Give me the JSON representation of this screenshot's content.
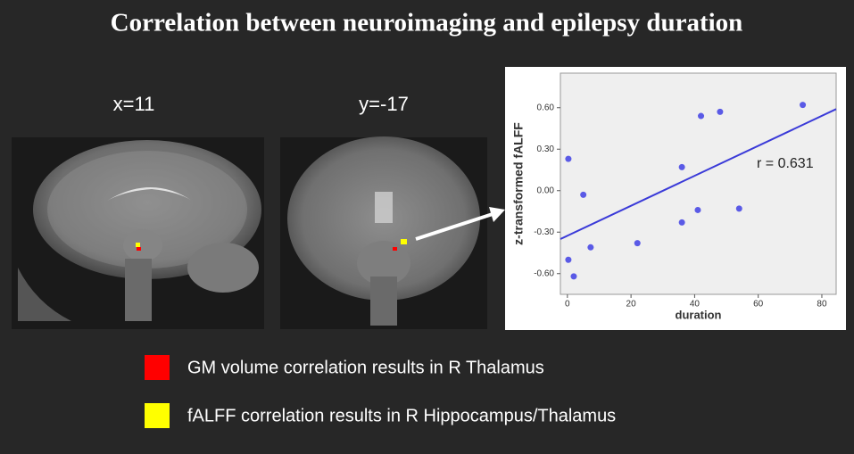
{
  "title": "Correlation between neuroimaging and epilepsy duration",
  "panel_labels": [
    "x=11",
    "y=-17"
  ],
  "legend": [
    {
      "label": "GM volume correlation results in R Thalamus",
      "color": "#ff0000"
    },
    {
      "label": "fALFF correlation results in R Hippocampus/Thalamus",
      "color": "#ffff00"
    }
  ],
  "chart_data": {
    "type": "scatter",
    "x_label": "duration",
    "y_label": "z-transformed fALFF",
    "annotation": "r = 0.631",
    "color": "#5a5ae6",
    "line_color": "#3a3ad8",
    "x": [
      0.3,
      0.3,
      2,
      5,
      7.3,
      22,
      36,
      36,
      41,
      42,
      48,
      54,
      74
    ],
    "y": [
      0.23,
      -0.5,
      -0.62,
      -0.03,
      -0.41,
      -0.38,
      -0.23,
      0.17,
      -0.14,
      0.54,
      0.57,
      -0.13,
      0.62
    ],
    "fit_line": {
      "x": [
        -2.2,
        84.5
      ],
      "y": [
        -0.35,
        0.59
      ]
    },
    "xlim": [
      -2.2,
      84.5
    ],
    "ylim": [
      -0.75,
      0.85
    ],
    "xticks": [
      0,
      20,
      40,
      60,
      80
    ],
    "yticks": [
      {
        "value": -0.6,
        "label": "-0.60"
      },
      {
        "value": -0.3,
        "label": "-0.30"
      },
      {
        "value": 0,
        "label": "0.00"
      },
      {
        "value": 0.3,
        "label": "0.30"
      },
      {
        "value": 0.6,
        "label": "0.60"
      }
    ]
  }
}
